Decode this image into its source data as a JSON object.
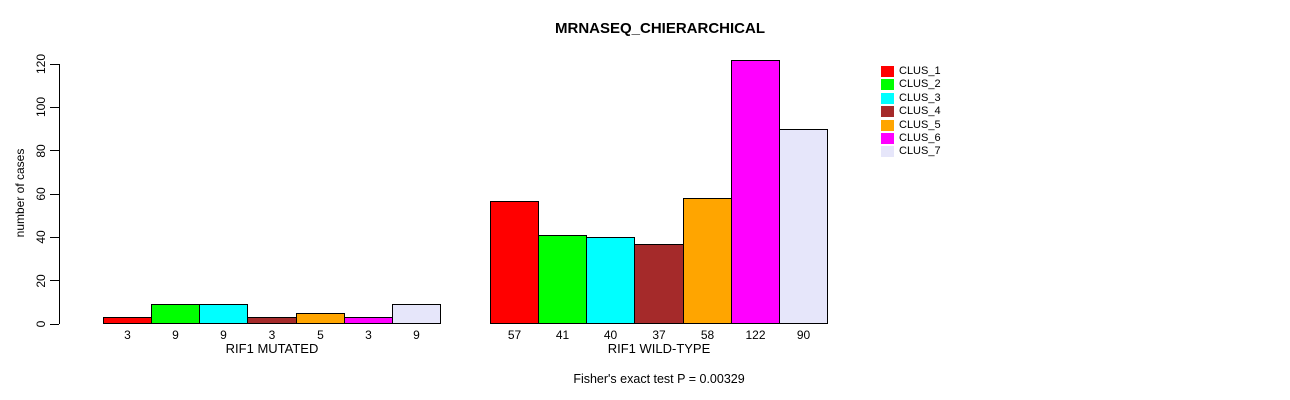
{
  "chart_data": {
    "type": "bar",
    "title": "MRNASEQ_CHIERARCHICAL",
    "ylabel": "number of cases",
    "ylim": [
      0,
      120
    ],
    "yticks": [
      0,
      20,
      40,
      60,
      80,
      100,
      120
    ],
    "grid": false,
    "legend_position": "right",
    "bar_value_labels_shown": true,
    "series_labels": [
      "CLUS_1",
      "CLUS_2",
      "CLUS_3",
      "CLUS_4",
      "CLUS_5",
      "CLUS_6",
      "CLUS_7"
    ],
    "series_colors": [
      "#ff0000",
      "#00ff00",
      "#00ffff",
      "#a52a2a",
      "#ffa500",
      "#ff00ff",
      "#e6e6fa"
    ],
    "groups": [
      {
        "label": "RIF1 MUTATED",
        "values": [
          3,
          9,
          9,
          3,
          5,
          3,
          9
        ]
      },
      {
        "label": "RIF1 WILD-TYPE",
        "values": [
          57,
          41,
          40,
          37,
          58,
          122,
          90
        ]
      }
    ],
    "annotation": "Fisher's exact test P = 0.00329",
    "colors": {
      "bar_border": "#000000",
      "axis": "#000000",
      "background": "#ffffff"
    }
  }
}
